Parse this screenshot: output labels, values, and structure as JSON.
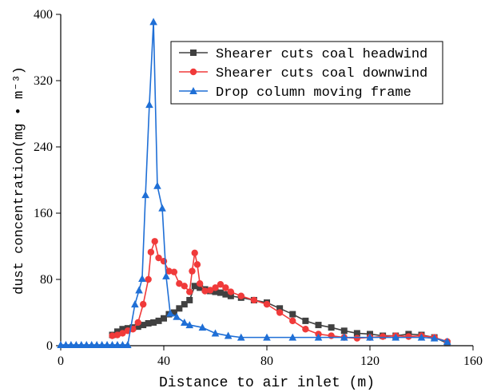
{
  "chart_data": {
    "type": "line",
    "xlabel": "Distance to air inlet (m)",
    "ylabel": "dust concentration(mg • m⁻³)",
    "xlim": [
      0,
      160
    ],
    "xticks": [
      0,
      40,
      80,
      120,
      160
    ],
    "ylim": [
      0,
      400
    ],
    "yticks": [
      0,
      80,
      160,
      240,
      320,
      400
    ],
    "legend": "upper right",
    "series": [
      {
        "name": "Shearer cuts coal headwind",
        "color": "#404040",
        "marker": "square",
        "x": [
          20,
          22,
          24,
          26,
          28,
          30,
          32,
          34,
          36,
          38,
          40,
          42,
          44,
          46,
          48,
          50,
          52,
          54,
          56,
          58,
          60,
          62,
          64,
          66,
          70,
          75,
          80,
          85,
          90,
          95,
          100,
          105,
          110,
          115,
          120,
          125,
          130,
          135,
          140,
          145,
          150
        ],
        "values": [
          13,
          17,
          20,
          21,
          22,
          23,
          25,
          27,
          28,
          30,
          33,
          38,
          40,
          45,
          50,
          55,
          72,
          70,
          68,
          66,
          65,
          64,
          62,
          60,
          58,
          55,
          52,
          45,
          38,
          30,
          25,
          22,
          18,
          15,
          14,
          12,
          12,
          14,
          13,
          10,
          3
        ]
      },
      {
        "name": "Shearer cuts coal downwind",
        "color": "#f03a3a",
        "marker": "circle",
        "x": [
          20,
          22,
          24,
          26,
          28,
          30,
          32,
          34,
          35,
          36.5,
          38,
          40,
          42,
          44,
          46,
          48,
          50,
          51,
          52,
          53,
          54,
          56,
          58,
          60,
          62,
          64,
          66,
          70,
          75,
          80,
          85,
          90,
          95,
          100,
          105,
          110,
          115,
          120,
          125,
          130,
          135,
          140,
          145,
          150
        ],
        "values": [
          12,
          13,
          15,
          18,
          20,
          28,
          50,
          80,
          113,
          126,
          106,
          102,
          90,
          89,
          75,
          72,
          65,
          90,
          112,
          98,
          75,
          66,
          67,
          70,
          74,
          70,
          65,
          60,
          55,
          50,
          40,
          30,
          20,
          14,
          12,
          10,
          9,
          10,
          11,
          12,
          11,
          12,
          10,
          5
        ]
      },
      {
        "name": "Drop column moving frame",
        "color": "#1f6fd6",
        "marker": "triangle",
        "x": [
          0,
          2,
          4,
          6,
          8,
          10,
          12,
          14,
          16,
          18,
          20,
          22,
          24,
          26,
          28.8,
          30.4,
          31.6,
          32.9,
          34.4,
          36,
          37.5,
          39.4,
          40.9,
          42.5,
          45,
          48,
          50,
          55,
          60,
          65,
          70,
          80,
          90,
          100,
          110,
          120,
          130,
          140,
          145,
          150
        ],
        "values": [
          1,
          1,
          1,
          1,
          1,
          1,
          1,
          1,
          1,
          1,
          1,
          1,
          1,
          1,
          50,
          67,
          81,
          182,
          291,
          391,
          193,
          166,
          84,
          39,
          35,
          28,
          25,
          22,
          15,
          12,
          10,
          10,
          10,
          10,
          10,
          10,
          10,
          10,
          9,
          5
        ]
      }
    ]
  }
}
